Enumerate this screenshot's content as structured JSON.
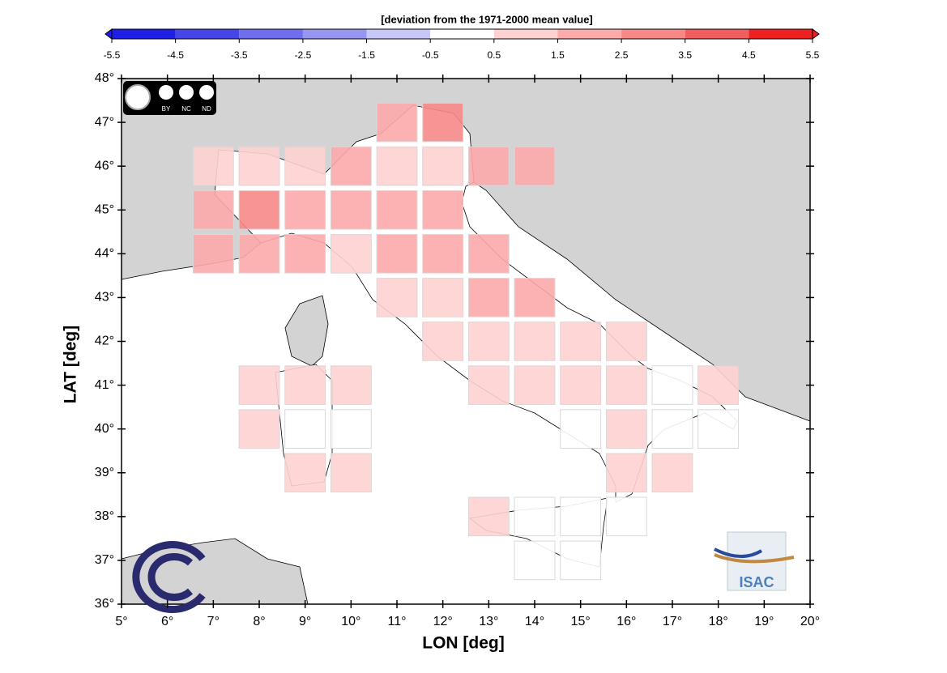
{
  "chart_data": {
    "type": "heatmap",
    "title": "[deviation from the 1971-2000 mean value]",
    "xlabel": "LON [deg]",
    "ylabel": "LAT [deg]",
    "xlim": [
      5,
      20
    ],
    "ylim": [
      36,
      48
    ],
    "xticks": [
      {
        "value": 5,
        "label": "5°"
      },
      {
        "value": 6,
        "label": "6°"
      },
      {
        "value": 7,
        "label": "7°"
      },
      {
        "value": 8,
        "label": "8°"
      },
      {
        "value": 9,
        "label": "9°"
      },
      {
        "value": 10,
        "label": "10°"
      },
      {
        "value": 11,
        "label": "11°"
      },
      {
        "value": 12,
        "label": "12°"
      },
      {
        "value": 13,
        "label": "13°"
      },
      {
        "value": 14,
        "label": "14°"
      },
      {
        "value": 15,
        "label": "15°"
      },
      {
        "value": 16,
        "label": "16°"
      },
      {
        "value": 17,
        "label": "17°"
      },
      {
        "value": 18,
        "label": "18°"
      },
      {
        "value": 19,
        "label": "19°"
      },
      {
        "value": 20,
        "label": "20°"
      }
    ],
    "yticks": [
      {
        "value": 36,
        "label": "36°"
      },
      {
        "value": 37,
        "label": "37°"
      },
      {
        "value": 38,
        "label": "38°"
      },
      {
        "value": 39,
        "label": "39°"
      },
      {
        "value": 40,
        "label": "40°"
      },
      {
        "value": 41,
        "label": "41°"
      },
      {
        "value": 42,
        "label": "42°"
      },
      {
        "value": 43,
        "label": "43°"
      },
      {
        "value": 44,
        "label": "44°"
      },
      {
        "value": 45,
        "label": "45°"
      },
      {
        "value": 46,
        "label": "46°"
      },
      {
        "value": 47,
        "label": "47°"
      },
      {
        "value": 48,
        "label": "48°"
      }
    ],
    "x": [
      11,
      12,
      7,
      8,
      9,
      10,
      11,
      12,
      13,
      14,
      7,
      8,
      9,
      10,
      11,
      12,
      7,
      8,
      9,
      10,
      11,
      12,
      13,
      11,
      12,
      13,
      14,
      12,
      13,
      14,
      15,
      16,
      8,
      9,
      10,
      13,
      14,
      15,
      16,
      17,
      18,
      8,
      9,
      10,
      15,
      16,
      17,
      18,
      9,
      10,
      16,
      17,
      13,
      14,
      15,
      16,
      14,
      15
    ],
    "y": [
      47,
      47,
      46,
      46,
      46,
      46,
      46,
      46,
      46,
      46,
      45,
      45,
      45,
      45,
      45,
      45,
      44,
      44,
      44,
      44,
      44,
      44,
      44,
      43,
      43,
      43,
      43,
      42,
      42,
      42,
      42,
      42,
      41,
      41,
      41,
      41,
      41,
      41,
      41,
      41,
      41,
      40,
      40,
      40,
      40,
      40,
      40,
      40,
      39,
      39,
      39,
      39,
      38,
      38,
      38,
      38,
      37,
      37
    ],
    "values": [
      2,
      3,
      1,
      1,
      1,
      2,
      1,
      1,
      2,
      2,
      2,
      3,
      2,
      2,
      2,
      2,
      2,
      2,
      2,
      1,
      2,
      2,
      2,
      1,
      1,
      2,
      2,
      1,
      1,
      1,
      1,
      1,
      1,
      1,
      1,
      1,
      1,
      1,
      1,
      0,
      1,
      1,
      0,
      0,
      0,
      1,
      0,
      0,
      1,
      1,
      1,
      1,
      1,
      0,
      0,
      0,
      0,
      0
    ],
    "colorbar": {
      "lim": [
        -5.5,
        5.5
      ],
      "ticks": [
        -5.5,
        -4.5,
        -3.5,
        -2.5,
        -1.5,
        -0.5,
        0.5,
        1.5,
        2.5,
        3.5,
        4.5,
        5.5
      ],
      "colors": [
        "#1e1ee6",
        "#4646e8",
        "#6e6eee",
        "#9696f2",
        "#c8c8f8",
        "#ffffff",
        "#ffd2d2",
        "#fcaaaa",
        "#f68888",
        "#f25e5e",
        "#ee2020"
      ]
    },
    "logo_texts": [
      "BY",
      "NC",
      "ND",
      "ISAC"
    ]
  }
}
